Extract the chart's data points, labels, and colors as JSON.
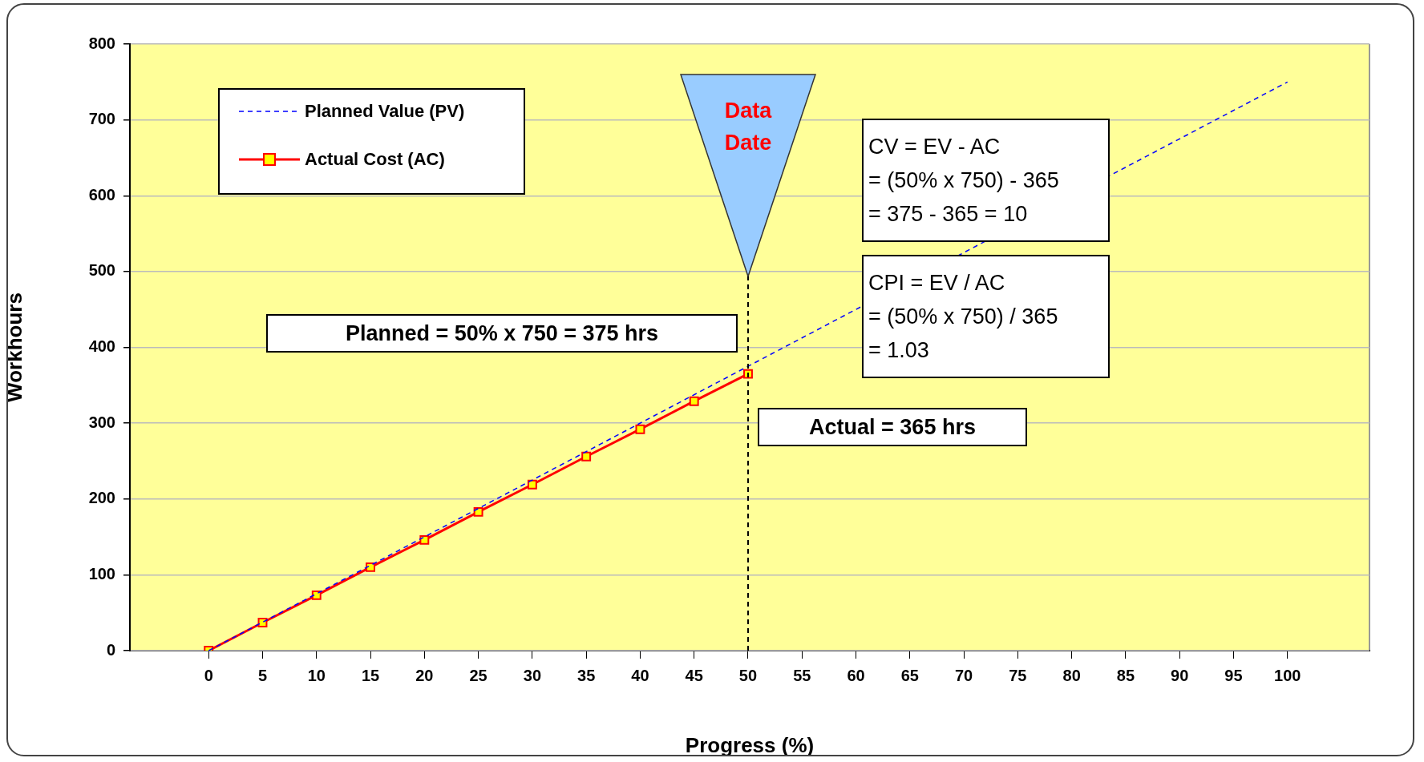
{
  "chart_data": {
    "type": "line",
    "xlabel": "Progress (%)",
    "ylabel": "Workhours",
    "xlim": [
      -7.3,
      107.6
    ],
    "xticks": [
      0,
      5,
      10,
      15,
      20,
      25,
      30,
      35,
      40,
      45,
      50,
      55,
      60,
      65,
      70,
      75,
      80,
      85,
      90,
      95,
      100
    ],
    "ylim": [
      0,
      800
    ],
    "yticks": [
      0,
      100,
      200,
      300,
      400,
      500,
      600,
      700,
      800
    ],
    "grid": "y",
    "legend": "top left",
    "series": [
      {
        "name": "Planned Value (PV)",
        "color": "#0000ff",
        "x": [
          0,
          100
        ],
        "values": [
          0,
          750
        ],
        "marker": "none",
        "line_style": "dashed"
      },
      {
        "name": "Actual Cost (AC)",
        "color": "#ff0000",
        "x": [
          0,
          5,
          10,
          15,
          20,
          25,
          30,
          35,
          40,
          45,
          50
        ],
        "values": [
          0,
          37,
          73,
          110,
          146,
          183,
          219,
          256,
          292,
          329,
          365
        ],
        "marker": "square",
        "line_style": "solid"
      }
    ],
    "ref_lines": [
      {
        "axis": "x",
        "value": 50,
        "label": "Data Date",
        "line_style": "dashed",
        "color": "#000000"
      }
    ],
    "annotations": [
      "Planned = 50% x 750 = 375 hrs",
      "Actual = 365 hrs",
      "CV = EV - AC\n= (50% x 750) - 365\n= 375 - 365 = 10",
      "CPI = EV / AC\n= (50% x 750) / 365\n= 1.03"
    ]
  }
}
